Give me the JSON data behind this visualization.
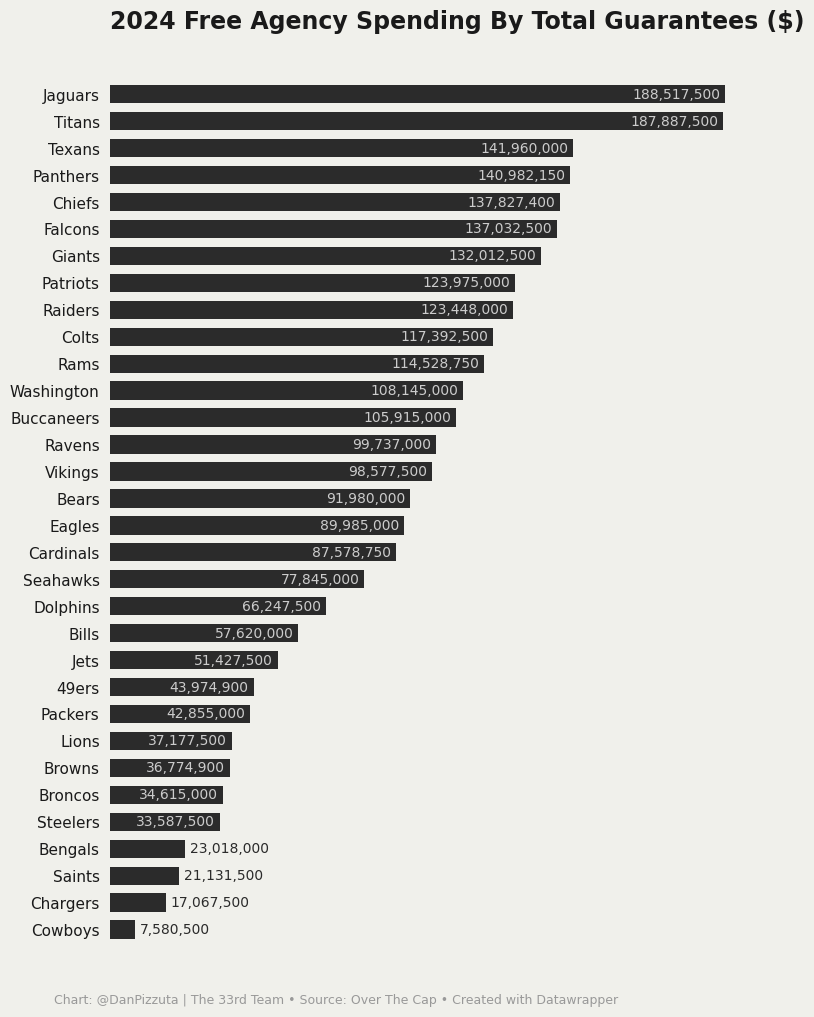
{
  "title": "2024 Free Agency Spending By Total Guarantees ($)",
  "teams": [
    "Jaguars",
    "Titans",
    "Texans",
    "Panthers",
    "Chiefs",
    "Falcons",
    "Giants",
    "Patriots",
    "Raiders",
    "Colts",
    "Rams",
    "Washington",
    "Buccaneers",
    "Ravens",
    "Vikings",
    "Bears",
    "Eagles",
    "Cardinals",
    "Seahawks",
    "Dolphins",
    "Bills",
    "Jets",
    "49ers",
    "Packers",
    "Lions",
    "Browns",
    "Broncos",
    "Steelers",
    "Bengals",
    "Saints",
    "Chargers",
    "Cowboys"
  ],
  "values": [
    188517500,
    187887500,
    141960000,
    140982150,
    137827400,
    137032500,
    132012500,
    123975000,
    123448000,
    117392500,
    114528750,
    108145000,
    105915000,
    99737000,
    98577500,
    91980000,
    89985000,
    87578750,
    77845000,
    66247500,
    57620000,
    51427500,
    43974900,
    42855000,
    37177500,
    36774900,
    34615000,
    33587500,
    23018000,
    21131500,
    17067500,
    7580500
  ],
  "bar_color": "#2b2b2b",
  "label_color_inside": "#cccccc",
  "label_color_outside": "#2b2b2b",
  "background_color": "#f0f0eb",
  "title_color": "#1a1a1a",
  "footer_text": "Chart: @DanPizzuta | The 33rd Team • Source: Over The Cap • Created with Datawrapper",
  "footer_color": "#999999",
  "title_fontsize": 17,
  "label_fontsize": 11,
  "value_fontsize": 10,
  "footer_fontsize": 9,
  "bar_height": 0.68,
  "inside_threshold": 30000000
}
